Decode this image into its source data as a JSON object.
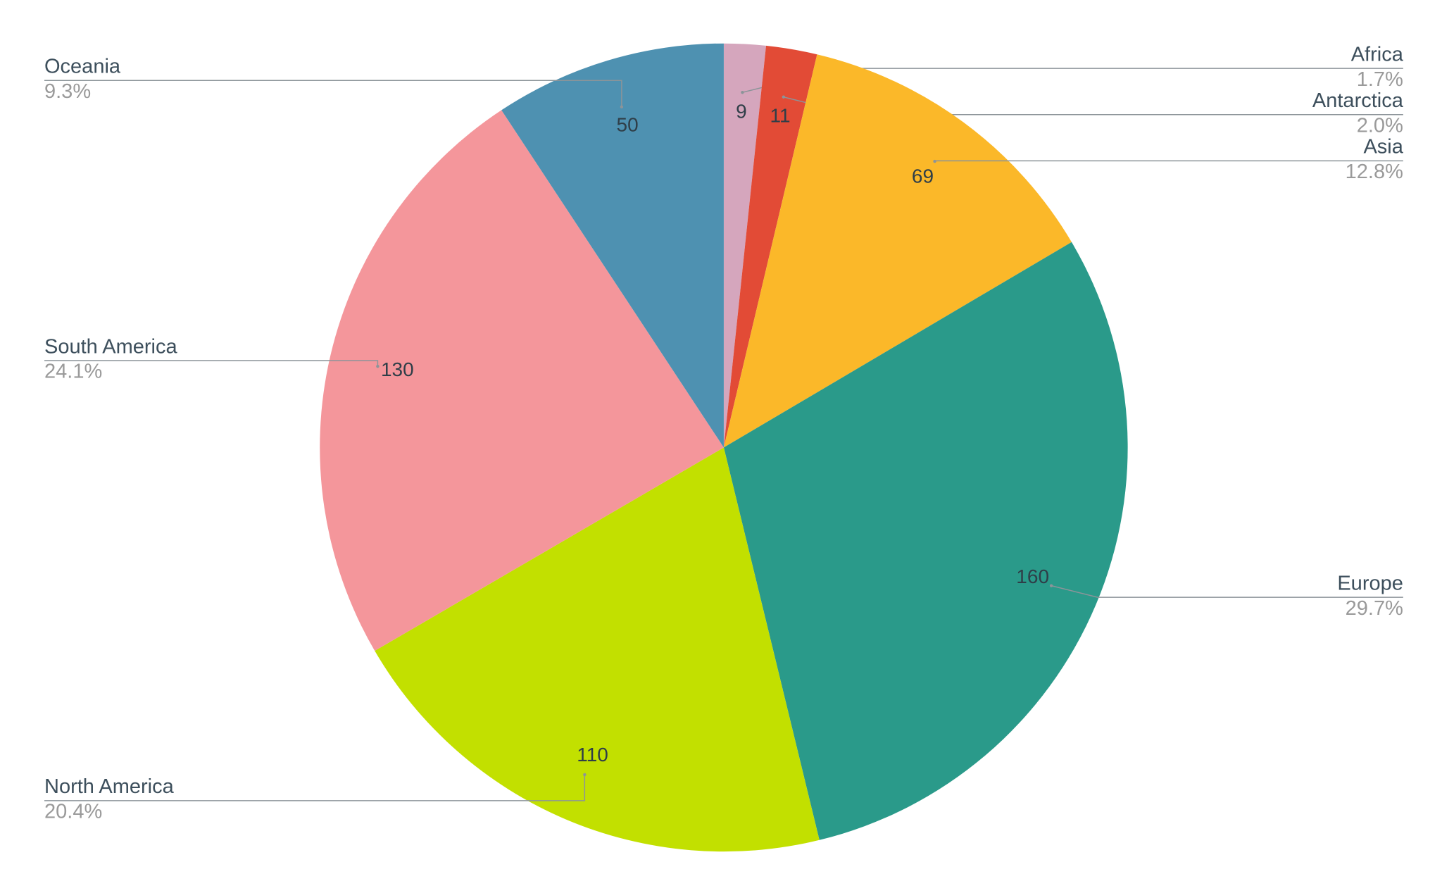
{
  "chart_data": {
    "type": "pie",
    "categories": [
      "Africa",
      "Antarctica",
      "Asia",
      "Europe",
      "North America",
      "South America",
      "Oceania"
    ],
    "values": [
      9,
      11,
      69,
      160,
      110,
      130,
      50
    ],
    "percent_labels": [
      "1.7%",
      "2.0%",
      "12.8%",
      "29.7%",
      "20.4%",
      "24.1%",
      "9.3%"
    ],
    "colors": [
      "#d5a6bd",
      "#e24b36",
      "#fbb829",
      "#2a9a8a",
      "#c2e000",
      "#f4969b",
      "#4e91b1"
    ]
  }
}
